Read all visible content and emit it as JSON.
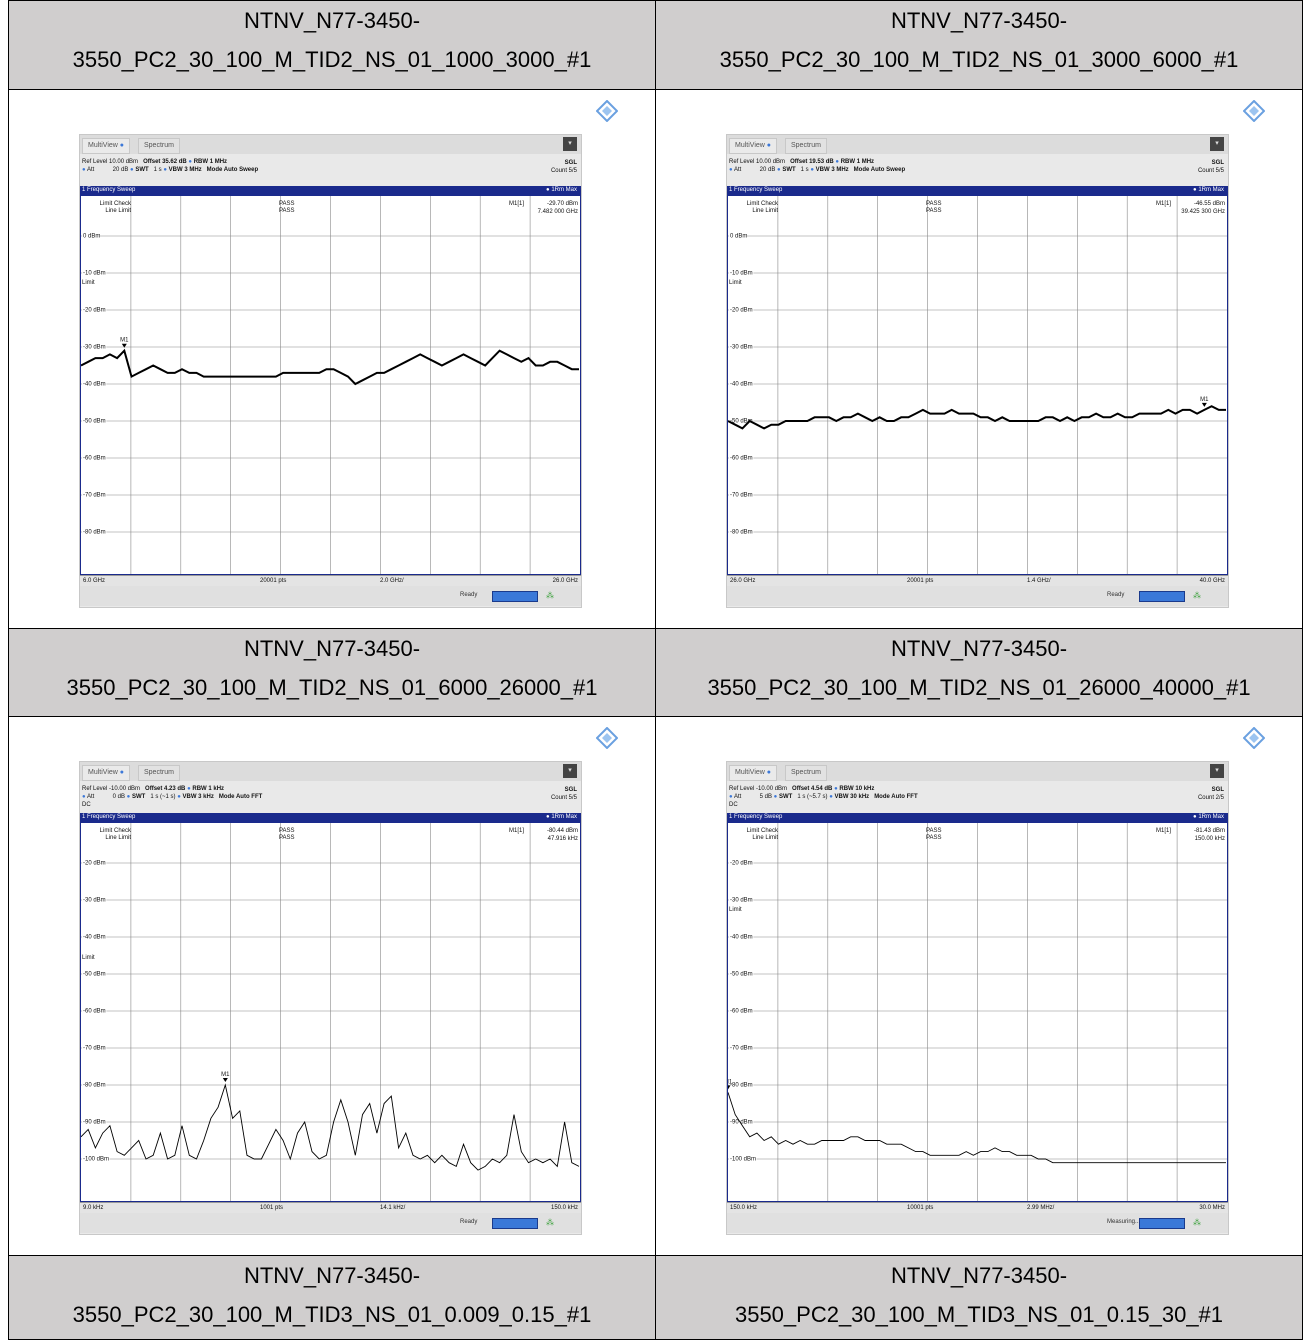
{
  "panels": [
    {
      "title_l1": "NTNV_N77-3450-",
      "title_l2": "3550_PC2_30_100_M_TID2_NS_01_1000_3000_#1",
      "tab1": "MultiView",
      "tab2": "Spectrum",
      "ref": "Ref Level 10.00 dBm",
      "offset": "Offset 35.62 dB",
      "rbw": "RBW 1 MHz",
      "att": "Att",
      "att_val": "20 dB",
      "swt": "SWT",
      "swt_val": "1 s",
      "vbw": "VBW 3 MHz",
      "mode": "Mode Auto Sweep",
      "dc": "",
      "sgl": "SGL",
      "count": "Count 5/5",
      "sweep": "1 Frequency Sweep",
      "trace": "1Rm Max",
      "lc": "Limit Check",
      "ll": "Line Limit",
      "pass1": "PASS",
      "pass2": "PASS",
      "mlabel": "M1[1]",
      "mval": "-29.70 dBm",
      "mfreq": "7.482 000 GHz",
      "levels": [
        "0 dBm",
        "-10 dBm",
        "-20 dBm",
        "-30 dBm",
        "-40 dBm",
        "-50 dBm",
        "-60 dBm",
        "-70 dBm",
        "-80 dBm"
      ],
      "top_db": 0,
      "limit_label": "Limit",
      "limit_db": -13,
      "x_start": "6.0 GHz",
      "pts": "20001 pts",
      "div": "2.0 GHz/",
      "x_stop": "26.0 GHz",
      "status": "Ready",
      "trace_data": [
        -35,
        -34,
        -33,
        -33,
        -32,
        -33,
        -31,
        -38,
        -37,
        -36,
        -35,
        -36,
        -37,
        -37,
        -36,
        -37,
        -37,
        -38,
        -38,
        -38,
        -38,
        -38,
        -38,
        -38,
        -38,
        -38,
        -38,
        -38,
        -37,
        -37,
        -37,
        -37,
        -37,
        -37,
        -36,
        -36,
        -37,
        -38,
        -40,
        -39,
        -38,
        -37,
        -37,
        -36,
        -35,
        -34,
        -33,
        -32,
        -33,
        -34,
        -35,
        -34,
        -33,
        -32,
        -33,
        -34,
        -35,
        -33,
        -31,
        -32,
        -33,
        -34,
        -33,
        -35,
        -35,
        -34,
        -34,
        -35,
        -36,
        -36
      ],
      "marker_idx": 6
    },
    {
      "title_l1": "NTNV_N77-3450-",
      "title_l2": "3550_PC2_30_100_M_TID2_NS_01_3000_6000_#1",
      "tab1": "MultiView",
      "tab2": "Spectrum",
      "ref": "Ref Level 10.00 dBm",
      "offset": "Offset 19.53 dB",
      "rbw": "RBW 1 MHz",
      "att": "Att",
      "att_val": "20 dB",
      "swt": "SWT",
      "swt_val": "1 s",
      "vbw": "VBW 3 MHz",
      "mode": "Mode Auto Sweep",
      "dc": "",
      "sgl": "SGL",
      "count": "Count 5/5",
      "sweep": "1 Frequency Sweep",
      "trace": "1Rm Max",
      "lc": "Limit Check",
      "ll": "Line Limit",
      "pass1": "PASS",
      "pass2": "PASS",
      "mlabel": "M1[1]",
      "mval": "-46.55 dBm",
      "mfreq": "39.425 300 GHz",
      "levels": [
        "0 dBm",
        "-10 dBm",
        "-20 dBm",
        "-30 dBm",
        "-40 dBm",
        "-50 dBm",
        "-60 dBm",
        "-70 dBm",
        "-80 dBm"
      ],
      "top_db": 0,
      "limit_label": "Limit",
      "limit_db": -13,
      "x_start": "26.0 GHz",
      "pts": "20001 pts",
      "div": "1.4 GHz/",
      "x_stop": "40.0 GHz",
      "status": "Ready",
      "trace_data": [
        -50,
        -51,
        -52,
        -50,
        -51,
        -52,
        -51,
        -51,
        -50,
        -50,
        -50,
        -50,
        -49,
        -49,
        -49,
        -50,
        -49,
        -49,
        -48,
        -49,
        -50,
        -49,
        -50,
        -50,
        -49,
        -49,
        -48,
        -47,
        -48,
        -48,
        -48,
        -47,
        -48,
        -48,
        -48,
        -49,
        -49,
        -50,
        -49,
        -50,
        -50,
        -50,
        -50,
        -50,
        -49,
        -49,
        -50,
        -49,
        -50,
        -49,
        -49,
        -48,
        -49,
        -49,
        -48,
        -49,
        -49,
        -48,
        -48,
        -48,
        -48,
        -47,
        -48,
        -47,
        -47,
        -48,
        -47,
        -46,
        -47,
        -47
      ],
      "marker_idx": 66
    },
    {
      "title_l1": "NTNV_N77-3450-",
      "title_l2": "3550_PC2_30_100_M_TID2_NS_01_6000_26000_#1",
      "tab1": "MultiView",
      "tab2": "Spectrum",
      "ref": "Ref Level -10.00 dBm",
      "offset": "Offset 4.23 dB",
      "rbw": "RBW 1 kHz",
      "att": "Att",
      "att_val": "0 dB",
      "swt": "SWT",
      "swt_val": "1 s (~1 s)",
      "vbw": "VBW 3 kHz",
      "mode": "Mode Auto FFT",
      "dc": "DC",
      "sgl": "SGL",
      "count": "Count 5/5",
      "sweep": "1 Frequency Sweep",
      "trace": "1Rm Max",
      "lc": "Limit Check",
      "ll": "Line Limit",
      "pass1": "PASS",
      "pass2": "PASS",
      "mlabel": "M1[1]",
      "mval": "-80.44 dBm",
      "mfreq": "47.916 kHz",
      "levels": [
        "-20 dBm",
        "-30 dBm",
        "-40 dBm",
        "-50 dBm",
        "-60 dBm",
        "-70 dBm",
        "-80 dBm",
        "-90 dBm",
        "-100 dBm"
      ],
      "top_db": -20,
      "limit_label": "Limit",
      "limit_db": -46,
      "x_start": "9.0 kHz",
      "pts": "1001 pts",
      "div": "14.1 kHz/",
      "x_stop": "150.0 kHz",
      "status": "Ready",
      "trace_data": [
        -94,
        -92,
        -97,
        -93,
        -91,
        -98,
        -99,
        -97,
        -95,
        -100,
        -99,
        -93,
        -100,
        -99,
        -91,
        -99,
        -100,
        -95,
        -89,
        -86,
        -80,
        -89,
        -87,
        -99,
        -100,
        -100,
        -96,
        -92,
        -95,
        -100,
        -93,
        -90,
        -98,
        -100,
        -99,
        -90,
        -84,
        -90,
        -99,
        -88,
        -85,
        -93,
        -85,
        -83,
        -97,
        -93,
        -99,
        -100,
        -99,
        -101,
        -99,
        -101,
        -102,
        -96,
        -101,
        -103,
        -102,
        -100,
        -101,
        -99,
        -88,
        -98,
        -101,
        -100,
        -101,
        -100,
        -102,
        -90,
        -101,
        -102
      ],
      "marker_idx": 20
    },
    {
      "title_l1": "NTNV_N77-3450-",
      "title_l2": "3550_PC2_30_100_M_TID2_NS_01_26000_40000_#1",
      "tab1": "MultiView",
      "tab2": "Spectrum",
      "ref": "Ref Level -10.00 dBm",
      "offset": "Offset 4.54 dB",
      "rbw": "RBW 10 kHz",
      "att": "Att",
      "att_val": "5 dB",
      "swt": "SWT",
      "swt_val": "1 s (~5.7 s)",
      "vbw": "VBW 30 kHz",
      "mode": "Mode Auto FFT",
      "dc": "DC",
      "sgl": "SGL",
      "count": "Count 2/5",
      "sweep": "1 Frequency Sweep",
      "trace": "1Rm Max",
      "lc": "Limit Check",
      "ll": "Line Limit",
      "pass1": "PASS",
      "pass2": "PASS",
      "mlabel": "M1[1]",
      "mval": "-81.43 dBm",
      "mfreq": "150.00 kHz",
      "levels": [
        "-20 dBm",
        "-30 dBm",
        "-40 dBm",
        "-50 dBm",
        "-60 dBm",
        "-70 dBm",
        "-80 dBm",
        "-90 dBm",
        "-100 dBm"
      ],
      "top_db": -20,
      "limit_label": "Limit",
      "limit_db": -33,
      "x_start": "150.0 kHz",
      "pts": "10001 pts",
      "div": "2.99 MHz/",
      "x_stop": "30.0 MHz",
      "status": "Measuring...",
      "trace_data": [
        -82,
        -88,
        -91,
        -94,
        -93,
        -95,
        -94,
        -96,
        -95,
        -96,
        -95,
        -96,
        -96,
        -95,
        -95,
        -95,
        -95,
        -94,
        -94,
        -95,
        -95,
        -95,
        -96,
        -96,
        -96,
        -97,
        -98,
        -98,
        -99,
        -99,
        -99,
        -99,
        -99,
        -98,
        -99,
        -98,
        -98,
        -97,
        -98,
        -98,
        -99,
        -99,
        -99,
        -100,
        -100,
        -101,
        -101,
        -101,
        -101,
        -101,
        -101,
        -101,
        -101,
        -101,
        -101,
        -101,
        -101,
        -101,
        -101,
        -101,
        -101,
        -101,
        -101,
        -101,
        -101,
        -101,
        -101,
        -101,
        -101,
        -101
      ],
      "marker_idx": 0
    }
  ],
  "bottom_headers": [
    {
      "l1": "NTNV_N77-3450-",
      "l2": "3550_PC2_30_100_M_TID3_NS_01_0.009_0.15_#1"
    },
    {
      "l1": "NTNV_N77-3450-",
      "l2": "3550_PC2_30_100_M_TID3_NS_01_0.15_30_#1"
    }
  ],
  "colors": {
    "header_bg": "#d0cece",
    "sweep_bar": "#1a2a8c",
    "trace": "#000000",
    "accent": "#3c78d8"
  }
}
